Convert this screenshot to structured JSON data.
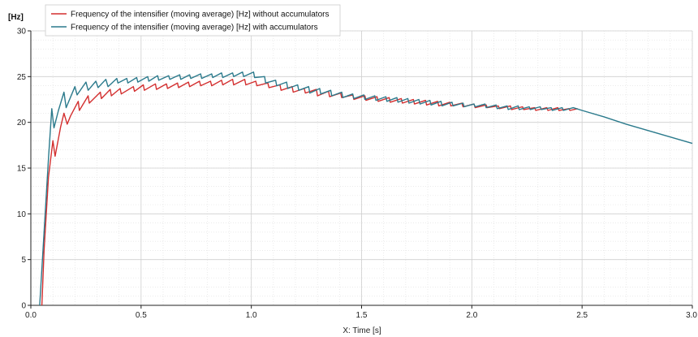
{
  "chart_data": {
    "type": "line",
    "title": "",
    "ylabel": "[Hz]",
    "xlabel": "X: Time [s]",
    "xlim": [
      0,
      3
    ],
    "ylim": [
      0,
      30
    ],
    "x_ticks": [
      0.0,
      0.5,
      1.0,
      1.5,
      2.0,
      2.5,
      3.0
    ],
    "x_tick_labels": [
      "0.0",
      "0.5",
      "1.0",
      "1.5",
      "2.0",
      "2.5",
      "3.0"
    ],
    "y_ticks": [
      0,
      5,
      10,
      15,
      20,
      25,
      30
    ],
    "y_tick_labels": [
      "0",
      "5",
      "10",
      "15",
      "20",
      "25",
      "30"
    ],
    "grid": true,
    "legend_position": "top-left",
    "series": [
      {
        "name": "Frequency of the intensifier (moving average) [Hz] without accumulators",
        "color": "#d32f2f",
        "x": [
          0.05,
          0.06,
          0.08,
          0.1,
          0.11,
          0.135,
          0.15,
          0.165,
          0.18,
          0.215,
          0.22,
          0.26,
          0.265,
          0.315,
          0.32,
          0.36,
          0.365,
          0.405,
          0.41,
          0.465,
          0.47,
          0.51,
          0.515,
          0.565,
          0.57,
          0.615,
          0.62,
          0.665,
          0.67,
          0.715,
          0.72,
          0.765,
          0.77,
          0.815,
          0.82,
          0.865,
          0.87,
          0.915,
          0.92,
          0.97,
          0.975,
          1.02,
          1.025,
          1.075,
          1.08,
          1.13,
          1.135,
          1.185,
          1.19,
          1.24,
          1.245,
          1.295,
          1.3,
          1.35,
          1.355,
          1.405,
          1.41,
          1.46,
          1.465,
          1.515,
          1.52,
          1.57,
          1.575,
          1.625,
          1.63,
          1.68,
          1.685,
          1.735,
          1.74,
          1.79,
          1.795,
          1.845,
          1.85,
          1.9,
          1.905,
          1.955,
          1.96,
          2.01,
          2.015,
          2.065,
          2.07,
          2.12,
          2.125,
          2.175,
          2.18,
          2.23,
          2.235,
          2.285,
          2.29,
          2.34,
          2.345,
          2.39,
          2.395,
          2.44,
          2.445,
          2.48
        ],
        "y": [
          0,
          6,
          14,
          18,
          16.3,
          19.5,
          21.0,
          19.8,
          20.7,
          22.3,
          21.3,
          22.9,
          22.1,
          23.3,
          22.6,
          23.6,
          22.9,
          23.7,
          23.1,
          23.9,
          23.4,
          24.1,
          23.5,
          24.2,
          23.6,
          24.2,
          23.7,
          24.3,
          23.8,
          24.4,
          23.9,
          24.5,
          24.0,
          24.5,
          24.0,
          24.6,
          24.1,
          24.7,
          24.1,
          24.7,
          24.1,
          24.5,
          24.0,
          24.3,
          23.8,
          24.1,
          23.5,
          23.9,
          23.3,
          23.7,
          23.2,
          23.6,
          22.9,
          23.4,
          22.8,
          23.2,
          22.7,
          23.0,
          22.5,
          22.9,
          22.4,
          22.8,
          22.3,
          22.7,
          22.2,
          22.6,
          22.1,
          22.5,
          22.0,
          22.4,
          21.9,
          22.3,
          21.8,
          22.2,
          21.8,
          22.1,
          21.7,
          22.0,
          21.6,
          21.9,
          21.6,
          21.8,
          21.5,
          21.8,
          21.4,
          21.7,
          21.4,
          21.6,
          21.3,
          21.6,
          21.3,
          21.6,
          21.3,
          21.5,
          21.3,
          21.5
        ]
      },
      {
        "name": "Frequency of the intensifier (moving average) [Hz] with accumulators",
        "color": "#2b7a8c",
        "x": [
          0.04,
          0.06,
          0.08,
          0.095,
          0.105,
          0.125,
          0.15,
          0.16,
          0.2,
          0.21,
          0.25,
          0.26,
          0.295,
          0.305,
          0.34,
          0.35,
          0.39,
          0.395,
          0.435,
          0.44,
          0.48,
          0.485,
          0.53,
          0.535,
          0.575,
          0.58,
          0.625,
          0.63,
          0.675,
          0.68,
          0.72,
          0.725,
          0.77,
          0.775,
          0.82,
          0.825,
          0.865,
          0.87,
          0.915,
          0.92,
          0.96,
          0.965,
          1.01,
          1.015,
          1.06,
          1.065,
          1.11,
          1.115,
          1.16,
          1.165,
          1.21,
          1.215,
          1.26,
          1.265,
          1.31,
          1.315,
          1.36,
          1.365,
          1.41,
          1.415,
          1.46,
          1.465,
          1.51,
          1.515,
          1.56,
          1.565,
          1.61,
          1.615,
          1.66,
          1.665,
          1.71,
          1.715,
          1.76,
          1.765,
          1.81,
          1.815,
          1.86,
          1.865,
          1.91,
          1.915,
          1.96,
          1.965,
          2.01,
          2.015,
          2.06,
          2.065,
          2.11,
          2.115,
          2.16,
          2.165,
          2.21,
          2.215,
          2.26,
          2.265,
          2.31,
          2.315,
          2.36,
          2.365,
          2.41,
          2.415,
          2.46,
          2.5,
          2.6,
          2.7,
          2.8,
          2.9,
          3.0
        ],
        "y": [
          0,
          8,
          16,
          21.5,
          19.4,
          21.3,
          23.3,
          21.6,
          23.9,
          23.0,
          24.4,
          23.5,
          24.5,
          23.8,
          24.7,
          23.9,
          24.8,
          24.3,
          24.8,
          24.3,
          24.9,
          24.4,
          25.0,
          24.5,
          25.1,
          24.6,
          25.1,
          24.7,
          25.2,
          24.7,
          25.2,
          24.8,
          25.3,
          24.8,
          25.3,
          24.9,
          25.4,
          24.9,
          25.4,
          25.0,
          25.5,
          25.0,
          25.5,
          24.9,
          25.0,
          24.3,
          24.6,
          24.0,
          24.4,
          23.7,
          24.1,
          23.5,
          23.9,
          23.2,
          23.7,
          23.1,
          23.5,
          22.9,
          23.3,
          22.7,
          23.1,
          22.6,
          23.0,
          22.5,
          22.9,
          22.4,
          22.8,
          22.3,
          22.7,
          22.2,
          22.6,
          22.1,
          22.5,
          22.0,
          22.4,
          21.9,
          22.3,
          21.8,
          22.2,
          21.8,
          22.1,
          21.7,
          22.0,
          21.7,
          22.0,
          21.6,
          21.9,
          21.5,
          21.8,
          21.4,
          21.8,
          21.4,
          21.7,
          21.4,
          21.7,
          21.4,
          21.6,
          21.3,
          21.6,
          21.3,
          21.6,
          21.3,
          20.6,
          19.8,
          19.1,
          18.4,
          17.7
        ]
      }
    ]
  }
}
